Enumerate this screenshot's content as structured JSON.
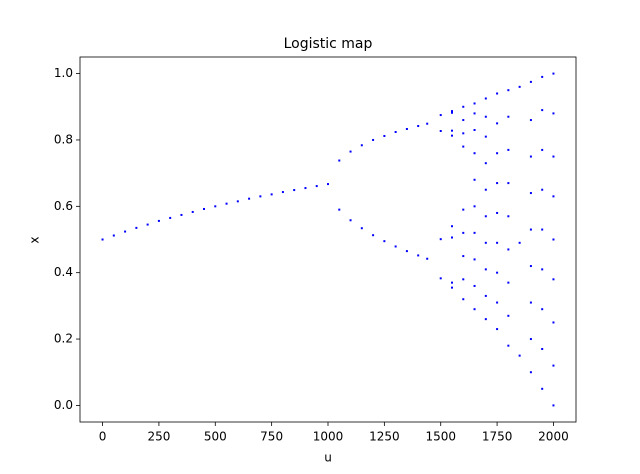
{
  "chart_data": {
    "type": "scatter",
    "title": "Logistic map",
    "x_label": "u",
    "y_label": "x",
    "color": "#0000ff",
    "xlim": [
      -100,
      2100
    ],
    "ylim": [
      -0.05,
      1.05
    ],
    "xticks": [
      0,
      250,
      500,
      750,
      1000,
      1250,
      1500,
      1750,
      2000
    ],
    "yticks": [
      {
        "value": 0,
        "label": "0.0"
      },
      0.2,
      0.4,
      0.6,
      0.8,
      {
        "value": 1,
        "label": "1.0"
      }
    ],
    "x": [
      0,
      50,
      100,
      150,
      200,
      250,
      300,
      350,
      400,
      450,
      500,
      550,
      600,
      650,
      700,
      750,
      800,
      850,
      900,
      950,
      1000,
      1050,
      1050,
      1100,
      1100,
      1150,
      1150,
      1200,
      1200,
      1250,
      1250,
      1300,
      1300,
      1350,
      1350,
      1400,
      1400,
      1440,
      1440,
      1500,
      1500,
      1500,
      1500,
      1550,
      1550,
      1550,
      1550,
      1550,
      1550,
      1550,
      1550,
      1600,
      1600,
      1600,
      1600,
      1600,
      1600,
      1600,
      1600,
      1600,
      1650,
      1650,
      1650,
      1650,
      1650,
      1650,
      1650,
      1650,
      1650,
      1650,
      1700,
      1700,
      1700,
      1700,
      1700,
      1700,
      1700,
      1700,
      1700,
      1700,
      1750,
      1750,
      1750,
      1750,
      1750,
      1750,
      1750,
      1750,
      1750,
      1800,
      1800,
      1800,
      1800,
      1800,
      1800,
      1800,
      1800,
      1800,
      1850,
      1850,
      1850,
      1900,
      1900,
      1900,
      1900,
      1900,
      1900,
      1900,
      1900,
      1900,
      1950,
      1950,
      1950,
      1950,
      1950,
      1950,
      1950,
      1950,
      1950,
      2000,
      2000,
      2000,
      2000,
      2000,
      2000,
      2000,
      2000,
      2000
    ],
    "y": [
      0.5,
      0.512,
      0.524,
      0.535,
      0.545,
      0.556,
      0.565,
      0.574,
      0.583,
      0.592,
      0.6,
      0.608,
      0.615,
      0.623,
      0.63,
      0.636,
      0.643,
      0.649,
      0.655,
      0.661,
      0.667,
      0.738,
      0.59,
      0.765,
      0.558,
      0.784,
      0.534,
      0.8,
      0.513,
      0.812,
      0.495,
      0.824,
      0.479,
      0.833,
      0.465,
      0.842,
      0.452,
      0.849,
      0.442,
      0.383,
      0.827,
      0.501,
      0.875,
      0.355,
      0.813,
      0.54,
      0.882,
      0.37,
      0.828,
      0.506,
      0.887,
      0.32,
      0.38,
      0.45,
      0.52,
      0.59,
      0.78,
      0.82,
      0.86,
      0.9,
      0.29,
      0.36,
      0.44,
      0.52,
      0.6,
      0.68,
      0.76,
      0.83,
      0.88,
      0.91,
      0.26,
      0.33,
      0.41,
      0.49,
      0.57,
      0.65,
      0.73,
      0.81,
      0.87,
      0.925,
      0.23,
      0.31,
      0.4,
      0.49,
      0.58,
      0.67,
      0.76,
      0.85,
      0.94,
      0.18,
      0.27,
      0.37,
      0.47,
      0.57,
      0.67,
      0.77,
      0.87,
      0.95,
      0.15,
      0.49,
      0.96,
      0.1,
      0.2,
      0.31,
      0.42,
      0.53,
      0.64,
      0.75,
      0.86,
      0.975,
      0.05,
      0.17,
      0.29,
      0.41,
      0.53,
      0.65,
      0.77,
      0.89,
      0.99,
      0,
      0.12,
      0.25,
      0.38,
      0.5,
      0.63,
      0.75,
      0.88,
      1
    ]
  }
}
